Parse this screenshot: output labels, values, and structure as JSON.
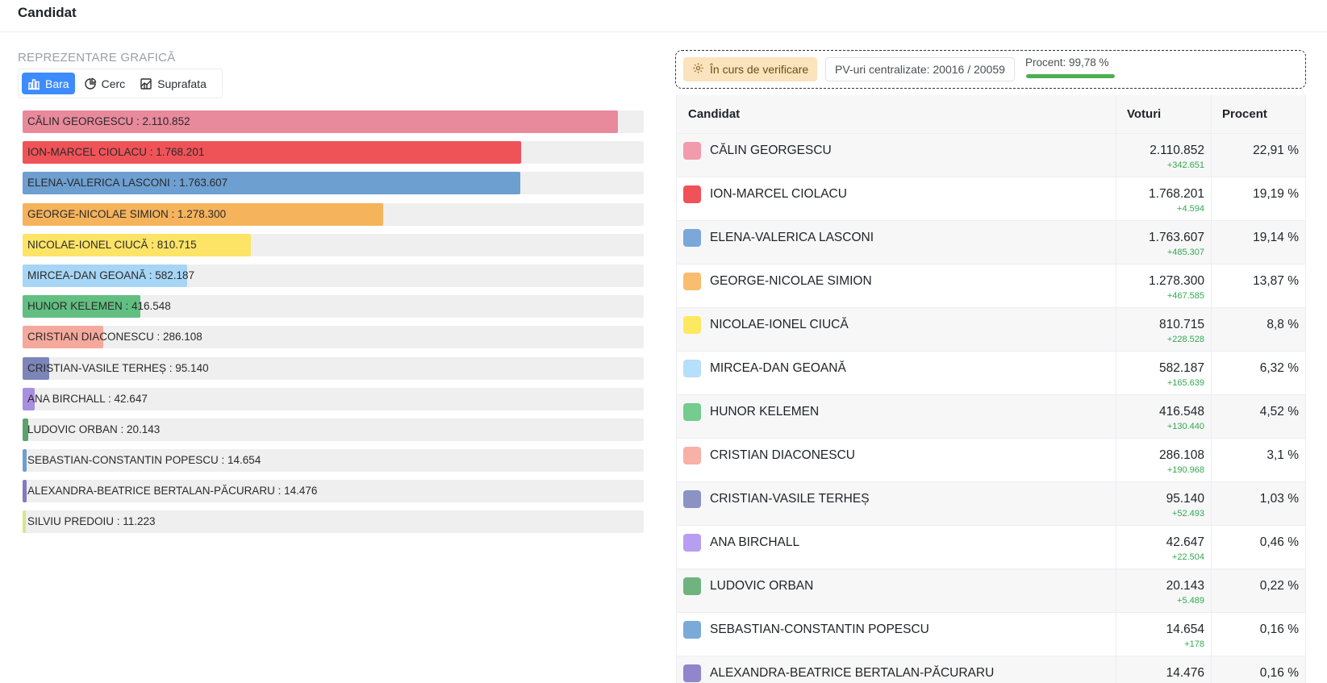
{
  "header": {
    "title": "Candidat"
  },
  "graphic": {
    "section_label": "REPREZENTARE GRAFICĂ",
    "tabs": [
      {
        "label": "Bara",
        "icon": "bar-chart-icon",
        "active": true
      },
      {
        "label": "Cerc",
        "icon": "pie-chart-icon",
        "active": false
      },
      {
        "label": "Suprafata",
        "icon": "area-chart-icon",
        "active": false
      }
    ]
  },
  "status": {
    "verification": "În curs de verificare",
    "pv": "PV-uri centralizate: 20016 / 20059",
    "percent_label": "Procent: 99,78 %",
    "percent_value": 99.78
  },
  "table": {
    "headers": {
      "candidate": "Candidat",
      "votes": "Voturi",
      "percent": "Procent"
    }
  },
  "chart_data": {
    "type": "bar",
    "orientation": "horizontal",
    "max": 2110852,
    "bars": [
      {
        "name": "CĂLIN GEORGESCU",
        "label": "CĂLIN GEORGESCU : 2.110.852",
        "value": 2110852,
        "color": "#e8899c"
      },
      {
        "name": "ION-MARCEL CIOLACU",
        "label": "ION-MARCEL CIOLACU : 1.768.201",
        "value": 1768201,
        "color": "#ef5358"
      },
      {
        "name": "ELENA-VALERICA LASCONI",
        "label": "ELENA-VALERICA LASCONI : 1.763.607",
        "value": 1763607,
        "color": "#6d9fd1"
      },
      {
        "name": "GEORGE-NICOLAE SIMION",
        "label": "GEORGE-NICOLAE SIMION : 1.278.300",
        "value": 1278300,
        "color": "#f5b35c"
      },
      {
        "name": "NICOLAE-IONEL CIUCĂ",
        "label": "NICOLAE-IONEL CIUCĂ : 810.715",
        "value": 810715,
        "color": "#fde466"
      },
      {
        "name": "MIRCEA-DAN GEOANĂ",
        "label": "MIRCEA-DAN GEOANĂ : 582.187",
        "value": 582187,
        "color": "#a7d5f6"
      },
      {
        "name": "HUNOR KELEMEN",
        "label": "HUNOR KELEMEN : 416.548",
        "value": 416548,
        "color": "#62bf82"
      },
      {
        "name": "CRISTIAN DIACONESCU",
        "label": "CRISTIAN DIACONESCU : 286.108",
        "value": 286108,
        "color": "#f5a99c"
      },
      {
        "name": "CRISTIAN-VASILE TERHEȘ",
        "label": "CRISTIAN-VASILE TERHEȘ : 95.140",
        "value": 95140,
        "color": "#7c85b8"
      },
      {
        "name": "ANA BIRCHALL",
        "label": "ANA BIRCHALL : 42.647",
        "value": 42647,
        "color": "#a98fe0"
      },
      {
        "name": "LUDOVIC ORBAN",
        "label": "LUDOVIC ORBAN : 20.143",
        "value": 20143,
        "color": "#5aa46c"
      },
      {
        "name": "SEBASTIAN-CONSTANTIN POPESCU",
        "label": "SEBASTIAN-CONSTANTIN POPESCU : 14.654",
        "value": 14654,
        "color": "#6e9ecf"
      },
      {
        "name": "ALEXANDRA-BEATRICE BERTALAN-PĂCURARU",
        "label": "ALEXANDRA-BEATRICE BERTALAN-PĂCURARU : 14.476",
        "value": 14476,
        "color": "#8677c2"
      },
      {
        "name": "SILVIU PREDOIU",
        "label": "SILVIU PREDOIU : 11.223",
        "value": 11223,
        "color": "#d6e68a"
      }
    ]
  },
  "rows": [
    {
      "name": "CĂLIN GEORGESCU",
      "votes": "2.110.852",
      "delta": "+342.651",
      "percent": "22,91 %",
      "color": "#f19bac"
    },
    {
      "name": "ION-MARCEL CIOLACU",
      "votes": "1.768.201",
      "delta": "+4.594",
      "percent": "19,19 %",
      "color": "#ef5358"
    },
    {
      "name": "ELENA-VALERICA LASCONI",
      "votes": "1.763.607",
      "delta": "+485.307",
      "percent": "19,14 %",
      "color": "#7ba7d9"
    },
    {
      "name": "GEORGE-NICOLAE SIMION",
      "votes": "1.278.300",
      "delta": "+467.585",
      "percent": "13,87 %",
      "color": "#f8bd6e"
    },
    {
      "name": "NICOLAE-IONEL CIUCĂ",
      "votes": "810.715",
      "delta": "+228.528",
      "percent": "8,8 %",
      "color": "#fde95f"
    },
    {
      "name": "MIRCEA-DAN GEOANĂ",
      "votes": "582.187",
      "delta": "+165.639",
      "percent": "6,32 %",
      "color": "#b6dffa"
    },
    {
      "name": "HUNOR KELEMEN",
      "votes": "416.548",
      "delta": "+130.440",
      "percent": "4,52 %",
      "color": "#74cc8f"
    },
    {
      "name": "CRISTIAN DIACONESCU",
      "votes": "286.108",
      "delta": "+190.968",
      "percent": "3,1 %",
      "color": "#f7b1a6"
    },
    {
      "name": "CRISTIAN-VASILE TERHEȘ",
      "votes": "95.140",
      "delta": "+52.493",
      "percent": "1,03 %",
      "color": "#8a93c4"
    },
    {
      "name": "ANA BIRCHALL",
      "votes": "42.647",
      "delta": "+22.504",
      "percent": "0,46 %",
      "color": "#b79ef0"
    },
    {
      "name": "LUDOVIC ORBAN",
      "votes": "20.143",
      "delta": "+5.489",
      "percent": "0,22 %",
      "color": "#6fb37f"
    },
    {
      "name": "SEBASTIAN-CONSTANTIN POPESCU",
      "votes": "14.654",
      "delta": "+178",
      "percent": "0,16 %",
      "color": "#7aaad8"
    },
    {
      "name": "ALEXANDRA-BEATRICE BERTALAN-PĂCURARU",
      "votes": "14.476",
      "delta": "",
      "percent": "0,16 %",
      "color": "#9185cc"
    }
  ]
}
